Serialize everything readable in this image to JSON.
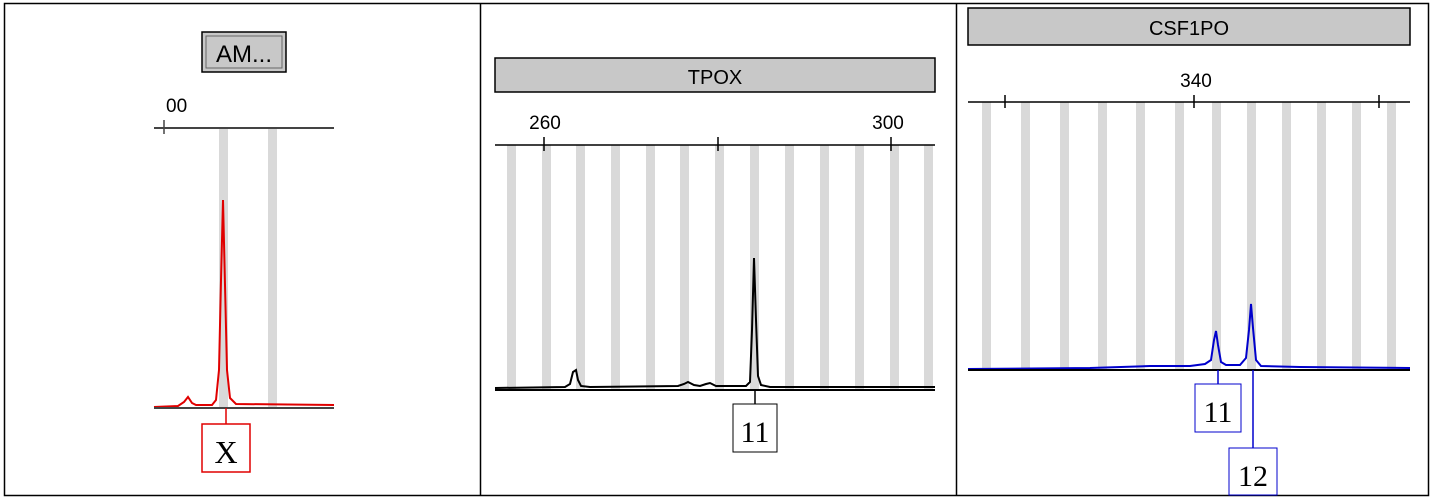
{
  "chart_data": [
    {
      "type": "line",
      "marker": "AM...",
      "x_ticks": [
        "00"
      ],
      "color": "#e00000",
      "peaks": [
        {
          "allele": "X",
          "relative_height": 0.95
        },
        {
          "allele": "",
          "relative_height": 0.03
        }
      ]
    },
    {
      "type": "line",
      "marker": "TPOX",
      "x_ticks": [
        "260",
        "300"
      ],
      "x_tick_values": [
        260,
        300
      ],
      "color": "#000000",
      "peaks": [
        {
          "allele": "11",
          "relative_height": 0.95
        },
        {
          "allele": "",
          "relative_height": 0.1
        }
      ]
    },
    {
      "type": "line",
      "marker": "CSF1PO",
      "x_ticks": [
        "340"
      ],
      "x_tick_values": [
        340
      ],
      "color": "#0000cc",
      "peaks": [
        {
          "allele": "11",
          "relative_height": 0.55
        },
        {
          "allele": "12",
          "relative_height": 0.95
        }
      ]
    }
  ]
}
